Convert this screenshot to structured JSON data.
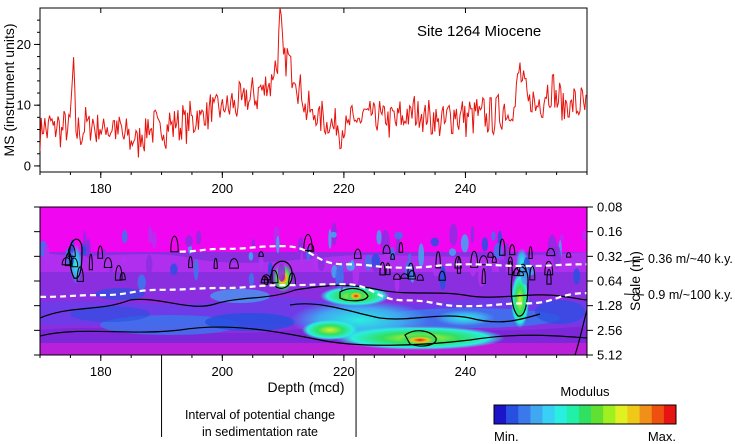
{
  "chart_data": [
    {
      "type": "line",
      "title": "Site 1264 Miocene",
      "ylabel": "MS (instrument units)",
      "xlim": [
        170,
        260
      ],
      "ylim": [
        -1,
        26
      ],
      "xticks": [
        180,
        200,
        220,
        240
      ],
      "yticks": [
        0,
        10,
        20
      ],
      "grid": false,
      "series": [
        {
          "color": "#e8120c",
          "x": [
            170,
            172,
            174,
            175,
            175.5,
            176,
            178,
            180,
            182,
            184,
            186,
            188,
            190,
            192,
            194,
            196,
            198,
            200,
            202,
            204,
            206,
            207,
            208,
            209,
            209.5,
            210,
            211,
            212,
            213,
            214,
            216,
            218,
            220,
            222,
            224,
            226,
            228,
            230,
            232,
            234,
            236,
            238,
            240,
            242,
            244,
            246,
            248,
            249,
            250,
            252,
            254,
            256,
            258,
            260
          ],
          "y": [
            6,
            6.5,
            6,
            7,
            16.5,
            5,
            7,
            6,
            6.5,
            5,
            4,
            6.5,
            6,
            7,
            7,
            8,
            9,
            9.5,
            10,
            11,
            12,
            13,
            14,
            17,
            24,
            18,
            17,
            15,
            12,
            9,
            8,
            7,
            6,
            7.5,
            8,
            8,
            7.5,
            8,
            9,
            8,
            7,
            8.5,
            8,
            8.5,
            8,
            9,
            9.5,
            16,
            11,
            10,
            13,
            10,
            10,
            10
          ]
        }
      ]
    },
    {
      "type": "heatmap",
      "xlabel": "Depth (mcd)",
      "ylabel": "Scale (m)",
      "xlim": [
        170,
        260
      ],
      "xticks": [
        180,
        200,
        220,
        240
      ],
      "y_scale": "log2",
      "yticks": [
        "0.08",
        "0.16",
        "0.32",
        "0.64",
        "1.28",
        "2.56",
        "5.12"
      ],
      "colorbar": {
        "title": "Modulus",
        "min_label": "Min.",
        "max_label": "Max.",
        "colors": [
          "#1c14c8",
          "#2850e0",
          "#3a78ec",
          "#40a8f0",
          "#38d0f4",
          "#2aeee0",
          "#20f0a8",
          "#30e060",
          "#60e030",
          "#a0f020",
          "#e0f020",
          "#f0c818",
          "#f09018",
          "#ee5010",
          "#e81414"
        ]
      },
      "ridges": [
        {
          "label": "0.36 m/~40 k.y.",
          "scale_m": 0.36,
          "x": [
            193,
            200,
            210,
            220,
            230,
            240,
            250,
            260
          ],
          "y": [
            0.28,
            0.26,
            0.24,
            0.4,
            0.44,
            0.4,
            0.42,
            0.4
          ]
        },
        {
          "label": "0.9 m/~100 k.y.",
          "scale_m": 0.9,
          "x": [
            170,
            180,
            190,
            200,
            210,
            220,
            230,
            240,
            250,
            260
          ],
          "y": [
            1.0,
            0.95,
            0.82,
            0.78,
            0.72,
            0.7,
            1.1,
            1.3,
            1.2,
            0.9
          ]
        }
      ],
      "annotation": {
        "text_line1": "Interval of potential change",
        "text_line2": "in sedimentation rate",
        "x_start": 190,
        "x_end": 222
      }
    }
  ]
}
